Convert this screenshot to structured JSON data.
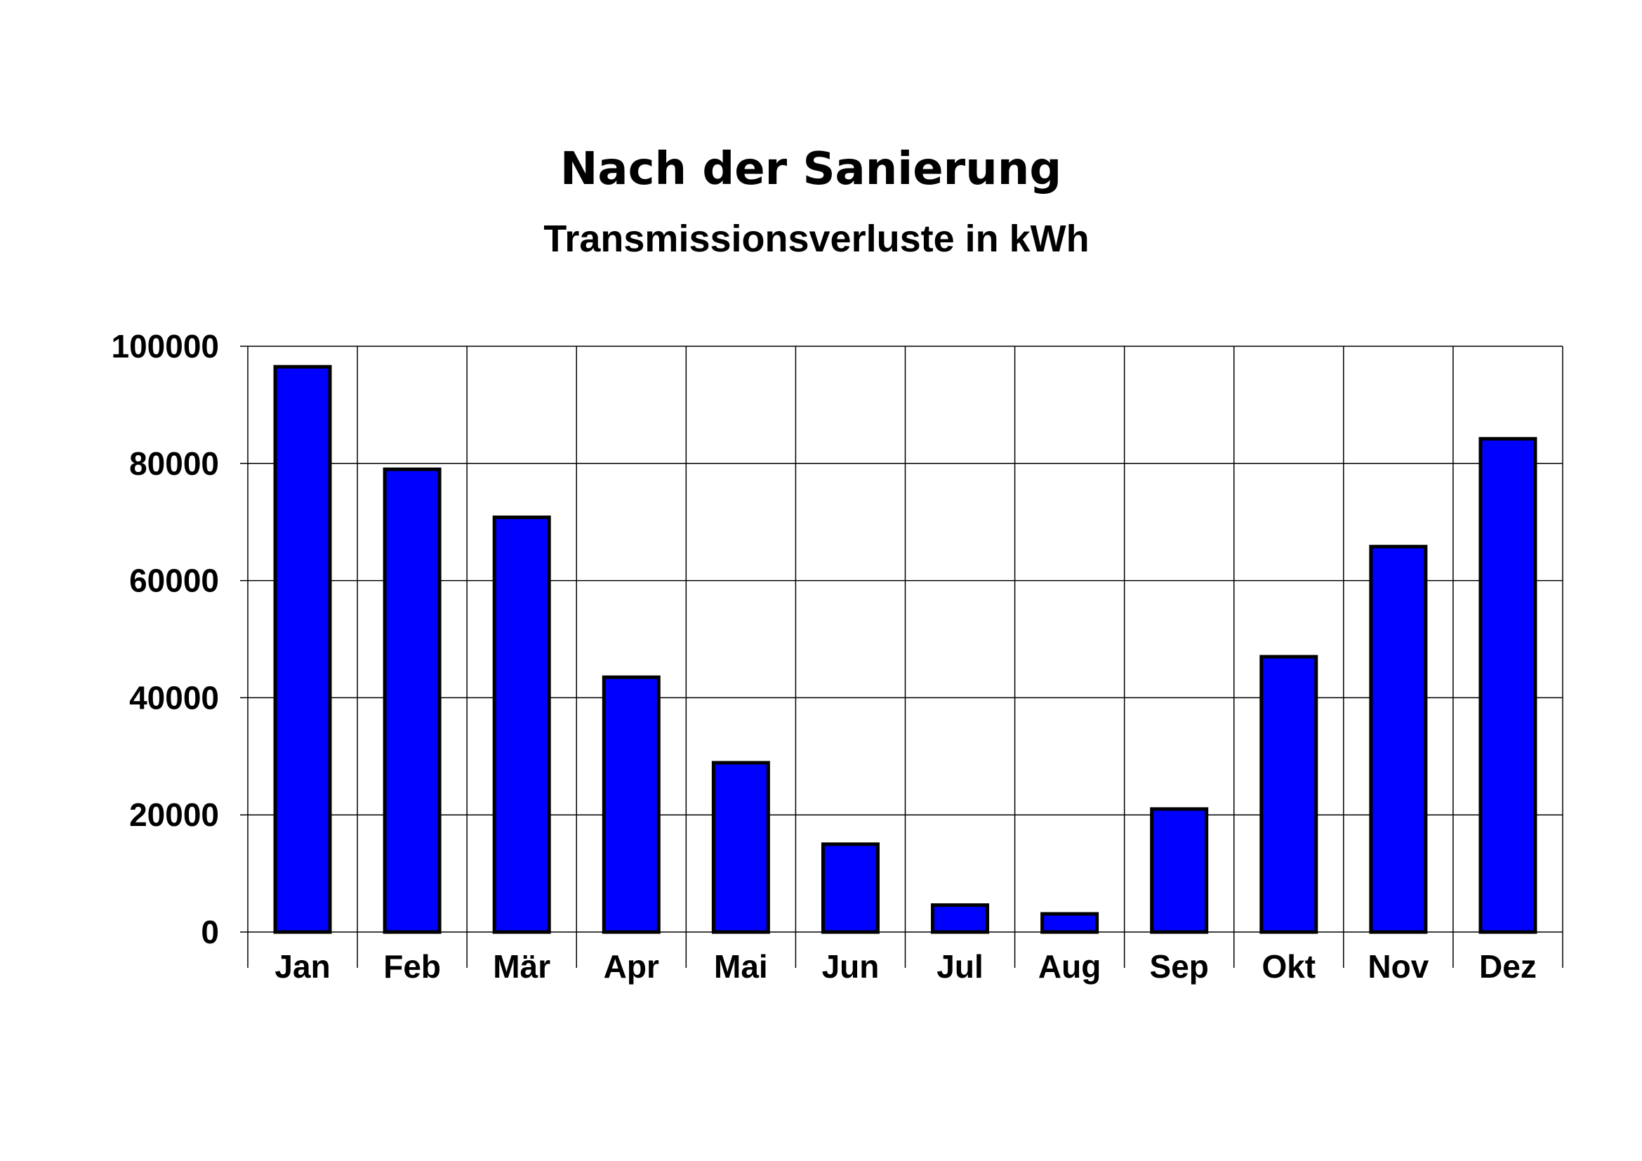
{
  "chart_data": {
    "type": "bar",
    "title": "Nach der Sanierung",
    "subtitle": "Transmissionsverluste in kWh",
    "xlabel": "",
    "ylabel": "",
    "categories": [
      "Jan",
      "Feb",
      "Mär",
      "Apr",
      "Mai",
      "Jun",
      "Jul",
      "Aug",
      "Sep",
      "Okt",
      "Nov",
      "Dez"
    ],
    "values": [
      96500,
      79000,
      70800,
      43500,
      28900,
      15000,
      4600,
      3100,
      21000,
      47000,
      65800,
      84200
    ],
    "ylim": [
      0,
      100000
    ],
    "yticks": [
      "0",
      "20000",
      "40000",
      "60000",
      "80000",
      "100000"
    ],
    "grid": true,
    "legend": "none",
    "colors": {
      "bar_fill": "#0000FF",
      "bar_stroke": "#000000",
      "grid": "#000000"
    }
  }
}
